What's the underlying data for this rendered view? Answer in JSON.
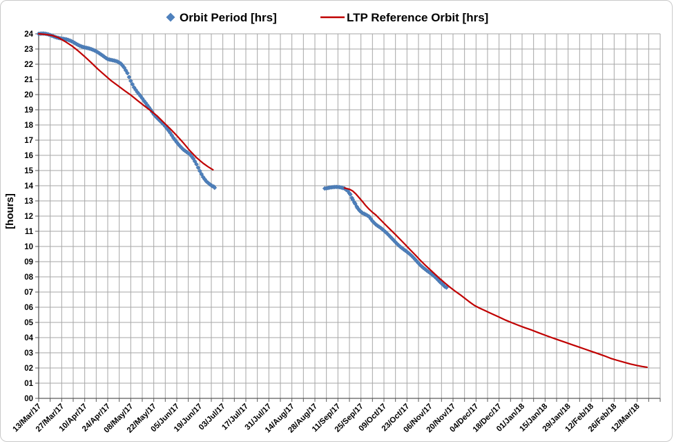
{
  "chart_data": {
    "type": "line",
    "title": "",
    "xlabel": "",
    "ylabel": "[hours]",
    "legend_position": "top",
    "grid": true,
    "colors": {
      "orbit_period": "#4F81BD",
      "ltp_reference": "#C00000",
      "gridline": "#A6A6A6",
      "axis": "#595959"
    },
    "y_axis": {
      "min": 0,
      "max": 24,
      "tick_step_hours": 1,
      "tick_labels": [
        "00",
        "01",
        "02",
        "03",
        "04",
        "05",
        "06",
        "07",
        "08",
        "09",
        "10",
        "11",
        "12",
        "13",
        "14",
        "15",
        "16",
        "17",
        "18",
        "19",
        "20",
        "21",
        "22",
        "23",
        "24"
      ]
    },
    "x_axis": {
      "domain_days": 378,
      "gridline_interval_days": 7,
      "label_interval_days": 14,
      "tick_labels": [
        "13/Mar/17",
        "27/Mar/17",
        "10/Apr/17",
        "24/Apr/17",
        "08/May/17",
        "22/May/17",
        "05/Jun/17",
        "19/Jun/17",
        "03/Jul/17",
        "17/Jul/17",
        "31/Jul/17",
        "14/Aug/17",
        "28/Aug/17",
        "11/Sep/17",
        "25/Sep/17",
        "09/Oct/17",
        "23/Oct/17",
        "06/Nov/17",
        "20/Nov/17",
        "04/Dec/17",
        "18/Dec/17",
        "01/Jan/18",
        "15/Jan/18",
        "29/Jan/18",
        "12/Feb/18",
        "26/Feb/18",
        "12/Mar/18"
      ]
    },
    "series": [
      {
        "name": "Orbit Period [hrs]",
        "type": "scatter",
        "marker": "diamond",
        "color": "#4F81BD",
        "segments": [
          [
            [
              0,
              24
            ],
            [
              3,
              23.97
            ],
            [
              6,
              23.93
            ],
            [
              9,
              23.87
            ],
            [
              12,
              23.78
            ],
            [
              15,
              23.67
            ],
            [
              18,
              23.55
            ],
            [
              21,
              23.43
            ],
            [
              24,
              23.3
            ],
            [
              27,
              23.18
            ],
            [
              30,
              23.05
            ],
            [
              33,
              22.9
            ],
            [
              36,
              22.76
            ],
            [
              39,
              22.6
            ],
            [
              42,
              22.38
            ],
            [
              45,
              22.25
            ],
            [
              48,
              22.12
            ],
            [
              50,
              22.0
            ],
            [
              52,
              21.78
            ],
            [
              54,
              21.45
            ],
            [
              56,
              20.95
            ],
            [
              58,
              20.5
            ],
            [
              60,
              20.15
            ],
            [
              62,
              19.85
            ],
            [
              64,
              19.55
            ],
            [
              66,
              19.3
            ],
            [
              68,
              19.05
            ],
            [
              70,
              18.75
            ],
            [
              72,
              18.5
            ],
            [
              74,
              18.25
            ],
            [
              76,
              18.0
            ],
            [
              78,
              17.72
            ],
            [
              80,
              17.45
            ],
            [
              82,
              17.15
            ],
            [
              84,
              16.9
            ],
            [
              86,
              16.65
            ],
            [
              88,
              16.4
            ],
            [
              90,
              16.2
            ],
            [
              92,
              16.02
            ],
            [
              94,
              15.75
            ],
            [
              96,
              15.4
            ],
            [
              98,
              15.0
            ],
            [
              100,
              14.62
            ],
            [
              102,
              14.32
            ],
            [
              104,
              14.1
            ],
            [
              105.5,
              13.95
            ],
            [
              107,
              13.87
            ]
          ],
          [
            [
              174,
              13.87
            ],
            [
              177,
              13.9
            ],
            [
              180,
              13.88
            ],
            [
              183,
              13.86
            ],
            [
              186,
              13.83
            ],
            [
              188,
              13.7
            ],
            [
              189.5,
              13.48
            ],
            [
              191,
              13.12
            ],
            [
              192.5,
              12.82
            ],
            [
              194,
              12.5
            ],
            [
              195.5,
              12.28
            ],
            [
              197,
              12.15
            ],
            [
              199,
              12.07
            ],
            [
              201,
              11.98
            ],
            [
              203,
              11.72
            ],
            [
              205,
              11.5
            ],
            [
              208,
              11.22
            ],
            [
              211,
              10.9
            ],
            [
              214,
              10.6
            ],
            [
              217,
              10.32
            ],
            [
              220,
              10.02
            ],
            [
              223,
              9.72
            ],
            [
              226,
              9.42
            ],
            [
              229,
              9.12
            ],
            [
              232,
              8.82
            ],
            [
              235,
              8.55
            ],
            [
              238,
              8.25
            ],
            [
              241,
              7.95
            ],
            [
              244,
              7.65
            ],
            [
              246,
              7.5
            ],
            [
              248,
              7.3
            ]
          ]
        ]
      },
      {
        "name": "LTP Reference Orbit [hrs]",
        "type": "line",
        "color": "#C00000",
        "segments": [
          [
            [
              0,
              24
            ],
            [
              4,
              23.96
            ],
            [
              8,
              23.9
            ],
            [
              12,
              23.75
            ],
            [
              16,
              23.5
            ],
            [
              20,
              23.22
            ],
            [
              24,
              22.88
            ],
            [
              28,
              22.5
            ],
            [
              32,
              22.1
            ],
            [
              36,
              21.68
            ],
            [
              40,
              21.3
            ],
            [
              44,
              20.92
            ],
            [
              48,
              20.6
            ],
            [
              52,
              20.28
            ],
            [
              56,
              19.97
            ],
            [
              60,
              19.62
            ],
            [
              64,
              19.28
            ],
            [
              68,
              18.95
            ],
            [
              72,
              18.6
            ],
            [
              76,
              18.17
            ],
            [
              80,
              17.75
            ],
            [
              84,
              17.3
            ],
            [
              88,
              16.82
            ],
            [
              92,
              16.3
            ],
            [
              96,
              15.85
            ],
            [
              100,
              15.48
            ],
            [
              103,
              15.25
            ],
            [
              106,
              15.05
            ]
          ],
          [
            [
              186,
              13.85
            ],
            [
              189,
              13.77
            ],
            [
              191,
              13.65
            ],
            [
              193,
              13.45
            ],
            [
              195,
              13.2
            ],
            [
              197,
              12.95
            ],
            [
              199,
              12.68
            ],
            [
              201,
              12.45
            ],
            [
              203,
              12.25
            ],
            [
              205,
              12.08
            ],
            [
              208,
              11.75
            ],
            [
              211,
              11.42
            ],
            [
              214,
              11.1
            ],
            [
              217,
              10.78
            ],
            [
              220,
              10.45
            ],
            [
              223,
              10.12
            ],
            [
              226,
              9.78
            ],
            [
              229,
              9.45
            ],
            [
              232,
              9.1
            ],
            [
              235,
              8.78
            ],
            [
              238,
              8.48
            ],
            [
              241,
              8.18
            ],
            [
              244,
              7.88
            ],
            [
              247,
              7.6
            ],
            [
              250,
              7.33
            ],
            [
              253,
              7.08
            ],
            [
              256,
              6.85
            ],
            [
              259,
              6.6
            ],
            [
              262,
              6.35
            ],
            [
              265,
              6.12
            ],
            [
              268,
              5.95
            ],
            [
              271,
              5.8
            ],
            [
              274,
              5.65
            ],
            [
              277,
              5.5
            ],
            [
              280,
              5.35
            ],
            [
              284,
              5.15
            ],
            [
              288,
              4.97
            ],
            [
              292,
              4.8
            ],
            [
              296,
              4.64
            ],
            [
              300,
              4.49
            ],
            [
              304,
              4.32
            ],
            [
              308,
              4.16
            ],
            [
              312,
              4.0
            ],
            [
              316,
              3.85
            ],
            [
              320,
              3.7
            ],
            [
              324,
              3.55
            ],
            [
              328,
              3.4
            ],
            [
              332,
              3.25
            ],
            [
              336,
              3.1
            ],
            [
              340,
              2.95
            ],
            [
              344,
              2.8
            ],
            [
              348,
              2.63
            ],
            [
              352,
              2.5
            ],
            [
              356,
              2.38
            ],
            [
              360,
              2.26
            ],
            [
              364,
              2.16
            ],
            [
              367,
              2.1
            ],
            [
              370,
              2.05
            ]
          ]
        ]
      }
    ]
  }
}
